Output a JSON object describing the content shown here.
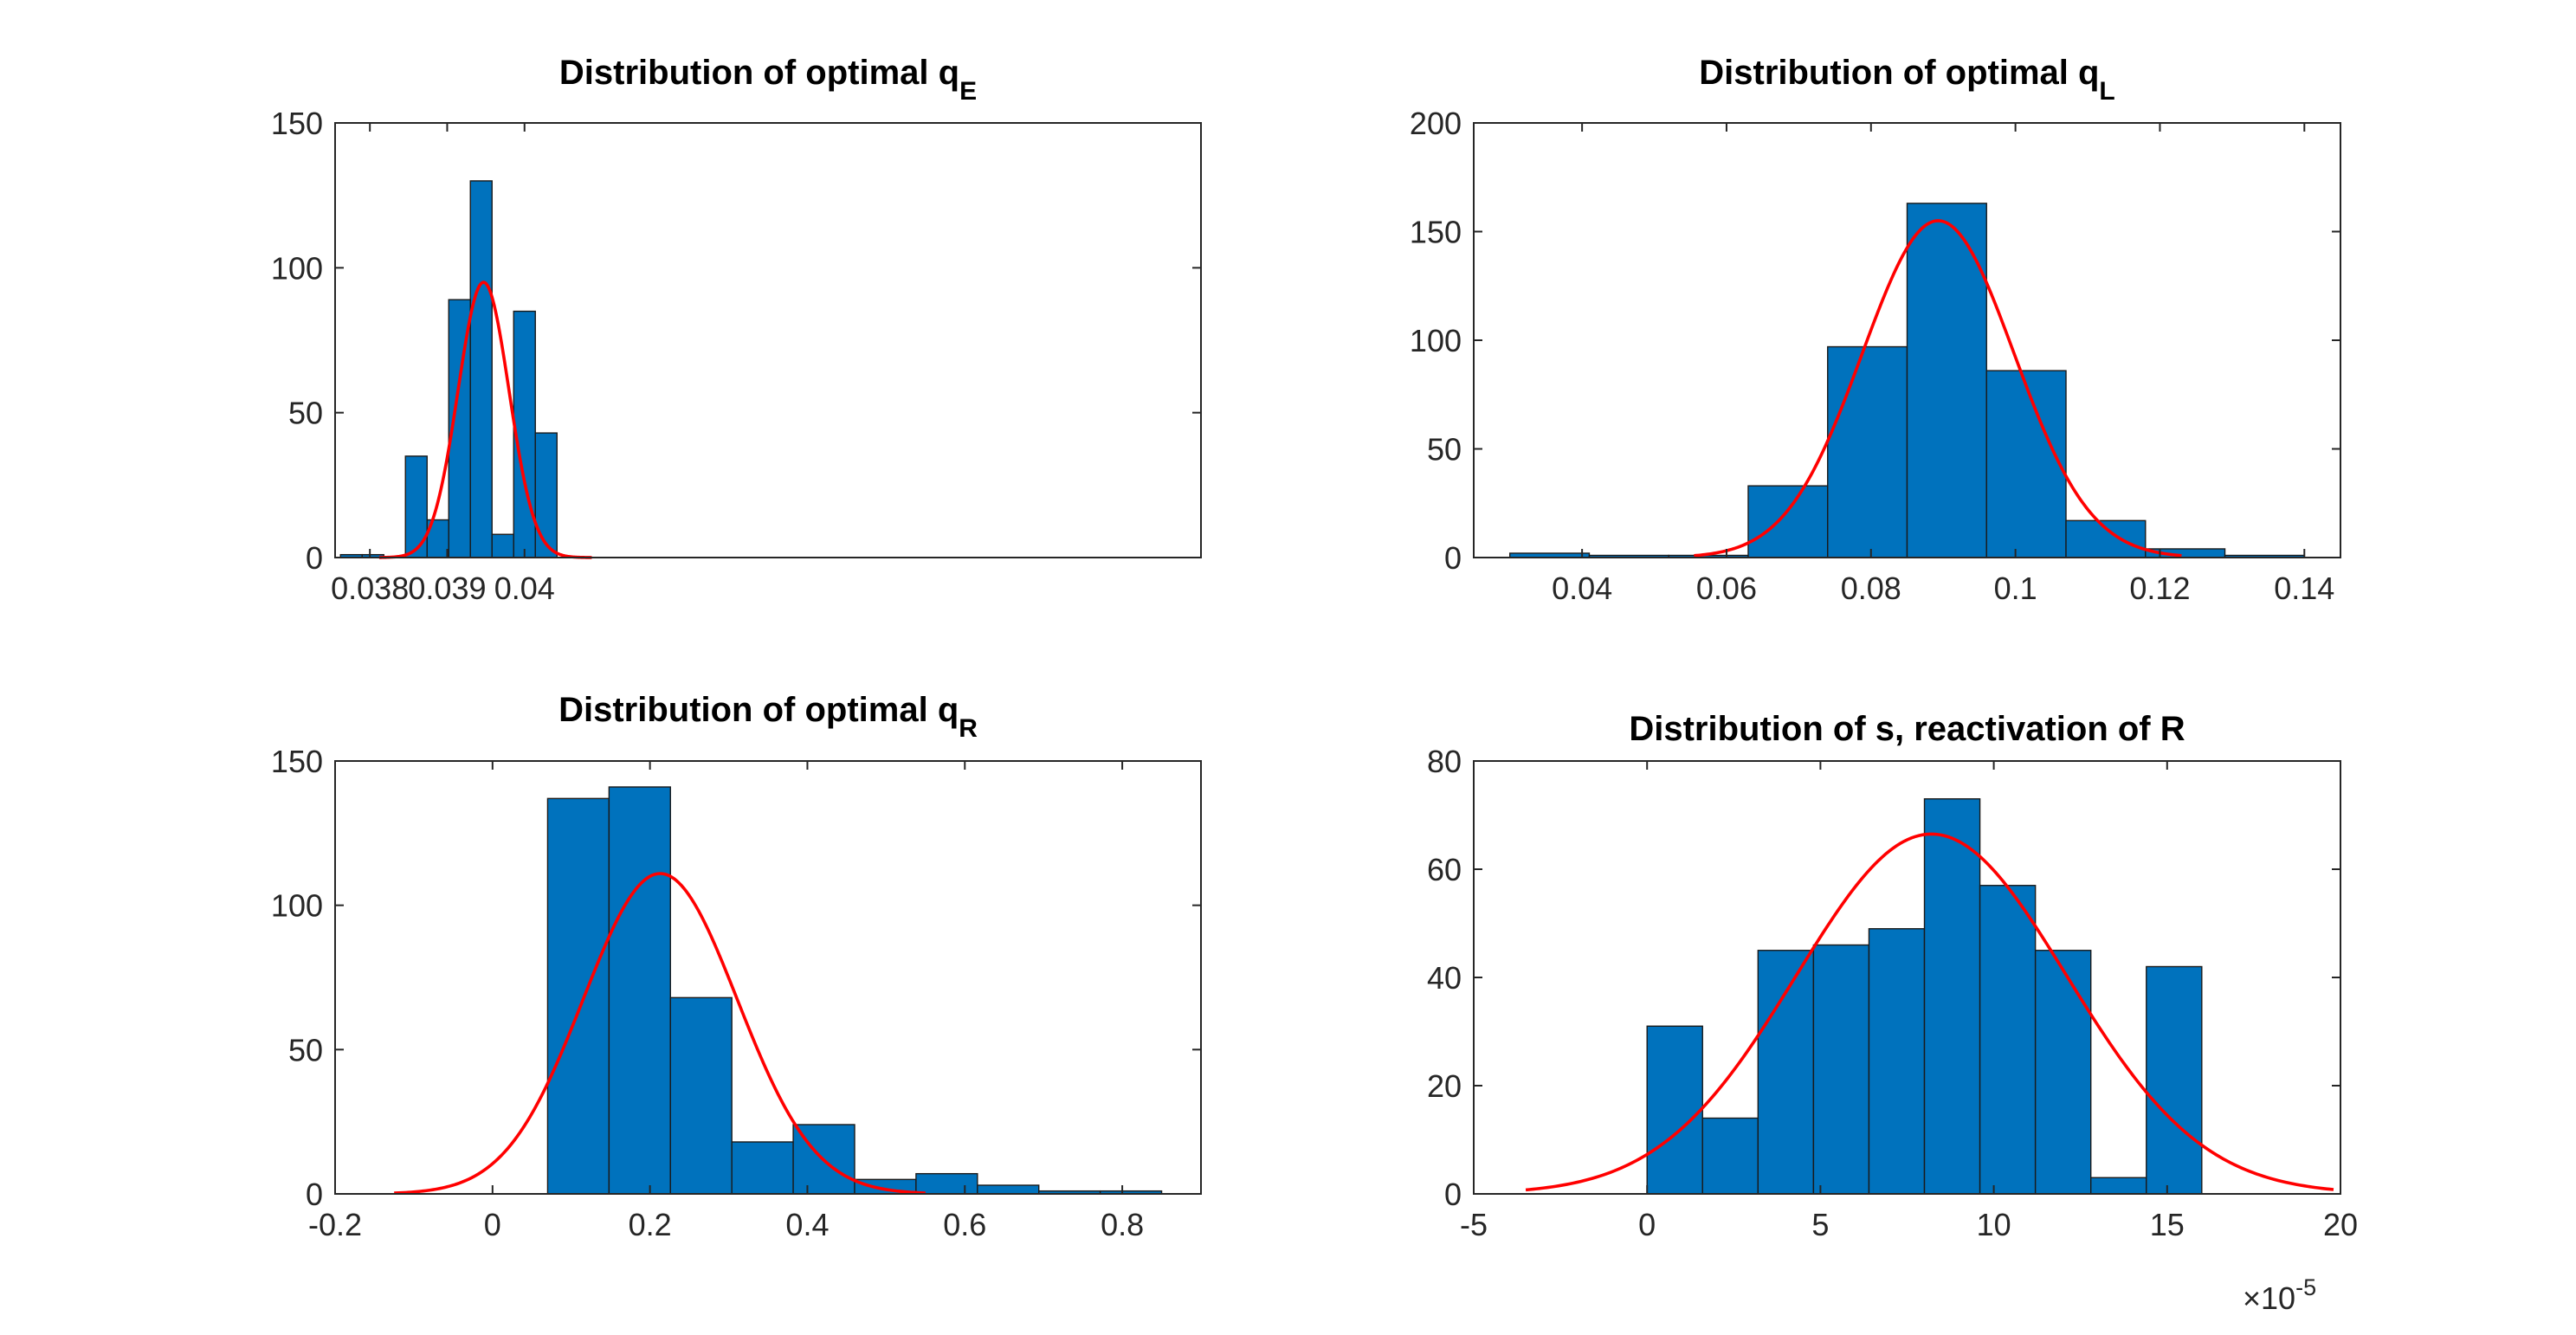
{
  "chart_data": [
    {
      "type": "bar",
      "title": "Distribution of optimal q",
      "title_subscript": "E",
      "xlim": [
        0.03755,
        0.04875
      ],
      "ylim": [
        0,
        150
      ],
      "xticks": [
        0.038,
        0.039,
        0.04
      ],
      "xtick_labels": [
        "0.038",
        "0.039",
        "0.04"
      ],
      "yticks": [
        0,
        50,
        100,
        150
      ],
      "ytick_labels": [
        "0",
        "50",
        "100",
        "150"
      ],
      "bins": [
        {
          "x0": 0.03762,
          "x1": 0.0379,
          "count": 1
        },
        {
          "x0": 0.0379,
          "x1": 0.03818,
          "count": 1
        },
        {
          "x0": 0.03846,
          "x1": 0.03874,
          "count": 35
        },
        {
          "x0": 0.03874,
          "x1": 0.03902,
          "count": 13
        },
        {
          "x0": 0.03902,
          "x1": 0.0393,
          "count": 89
        },
        {
          "x0": 0.0393,
          "x1": 0.03958,
          "count": 130
        },
        {
          "x0": 0.03958,
          "x1": 0.03986,
          "count": 8
        },
        {
          "x0": 0.03986,
          "x1": 0.04014,
          "count": 85
        },
        {
          "x0": 0.04014,
          "x1": 0.04042,
          "count": 43
        }
      ],
      "fit": {
        "mean": 0.03947,
        "sd": 0.00033,
        "peak": 95,
        "x_from": 0.03812,
        "x_to": 0.04087
      }
    },
    {
      "type": "bar",
      "title": "Distribution of optimal q",
      "title_subscript": "L",
      "xlim": [
        0.025,
        0.145
      ],
      "ylim": [
        0,
        200
      ],
      "xticks": [
        0.04,
        0.06,
        0.08,
        0.1,
        0.12,
        0.14
      ],
      "xtick_labels": [
        "0.04",
        "0.06",
        "0.08",
        "0.1",
        "0.12",
        "0.14"
      ],
      "yticks": [
        0,
        50,
        100,
        150,
        200
      ],
      "ytick_labels": [
        "0",
        "50",
        "100",
        "150",
        "200"
      ],
      "bins": [
        {
          "x0": 0.03,
          "x1": 0.041,
          "count": 2
        },
        {
          "x0": 0.041,
          "x1": 0.052,
          "count": 1
        },
        {
          "x0": 0.052,
          "x1": 0.063,
          "count": 1
        },
        {
          "x0": 0.063,
          "x1": 0.074,
          "count": 33
        },
        {
          "x0": 0.074,
          "x1": 0.085,
          "count": 97
        },
        {
          "x0": 0.085,
          "x1": 0.096,
          "count": 163
        },
        {
          "x0": 0.096,
          "x1": 0.107,
          "count": 86
        },
        {
          "x0": 0.107,
          "x1": 0.118,
          "count": 17
        },
        {
          "x0": 0.118,
          "x1": 0.129,
          "count": 4
        },
        {
          "x0": 0.129,
          "x1": 0.14,
          "count": 1
        }
      ],
      "fit": {
        "mean": 0.0893,
        "sd": 0.0105,
        "peak": 155,
        "x_from": 0.0555,
        "x_to": 0.123
      }
    },
    {
      "type": "bar",
      "title": "Distribution of optimal q",
      "title_subscript": "R",
      "xlim": [
        -0.2,
        0.9
      ],
      "ylim": [
        0,
        150
      ],
      "xticks": [
        -0.2,
        0,
        0.2,
        0.4,
        0.6,
        0.8
      ],
      "xtick_labels": [
        "-0.2",
        "0",
        "0.2",
        "0.4",
        "0.6",
        "0.8"
      ],
      "yticks": [
        0,
        50,
        100,
        150
      ],
      "ytick_labels": [
        "0",
        "50",
        "100",
        "150"
      ],
      "bins": [
        {
          "x0": 0.07,
          "x1": 0.148,
          "count": 137
        },
        {
          "x0": 0.148,
          "x1": 0.226,
          "count": 141
        },
        {
          "x0": 0.226,
          "x1": 0.304,
          "count": 68
        },
        {
          "x0": 0.304,
          "x1": 0.382,
          "count": 18
        },
        {
          "x0": 0.382,
          "x1": 0.46,
          "count": 24
        },
        {
          "x0": 0.46,
          "x1": 0.538,
          "count": 5
        },
        {
          "x0": 0.538,
          "x1": 0.616,
          "count": 7
        },
        {
          "x0": 0.616,
          "x1": 0.694,
          "count": 3
        },
        {
          "x0": 0.694,
          "x1": 0.772,
          "count": 1
        },
        {
          "x0": 0.772,
          "x1": 0.85,
          "count": 1
        }
      ],
      "fit": {
        "mean": 0.213,
        "sd": 0.098,
        "peak": 111,
        "x_from": -0.125,
        "x_to": 0.55
      }
    },
    {
      "type": "bar",
      "title": "Distribution of s, reactivation of R",
      "title_subscript": "",
      "xlim": [
        -5,
        20
      ],
      "ylim": [
        0,
        80
      ],
      "xticks": [
        -5,
        0,
        5,
        10,
        15,
        20
      ],
      "xtick_labels": [
        "-5",
        "0",
        "5",
        "10",
        "15",
        "20"
      ],
      "x_exponent_label": "×10",
      "x_exponent": "-5",
      "yticks": [
        0,
        20,
        40,
        60,
        80
      ],
      "ytick_labels": [
        "0",
        "20",
        "40",
        "60",
        "80"
      ],
      "bins": [
        {
          "x0": 0.0,
          "x1": 1.6,
          "count": 31
        },
        {
          "x0": 1.6,
          "x1": 3.2,
          "count": 14
        },
        {
          "x0": 3.2,
          "x1": 4.8,
          "count": 45
        },
        {
          "x0": 4.8,
          "x1": 6.4,
          "count": 46
        },
        {
          "x0": 6.4,
          "x1": 8.0,
          "count": 49
        },
        {
          "x0": 8.0,
          "x1": 9.6,
          "count": 73
        },
        {
          "x0": 9.6,
          "x1": 11.2,
          "count": 57
        },
        {
          "x0": 11.2,
          "x1": 12.8,
          "count": 45
        },
        {
          "x0": 12.8,
          "x1": 14.4,
          "count": 3
        },
        {
          "x0": 14.4,
          "x1": 16.0,
          "count": 42
        }
      ],
      "fit": {
        "mean": 8.2,
        "sd": 3.9,
        "peak": 66.5,
        "x_from": -3.5,
        "x_to": 19.8
      }
    }
  ]
}
